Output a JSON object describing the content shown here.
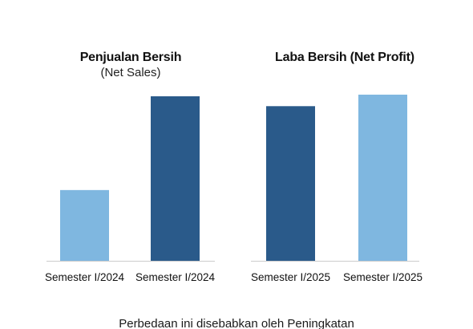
{
  "colors": {
    "dark_blue": "#2a5a8a",
    "light_blue": "#7fb7e0",
    "baseline": "#cccccc",
    "text": "#111111"
  },
  "chart_data": [
    {
      "type": "bar",
      "title": "Penjualan Bersih",
      "subtitle": "(Net Sales)",
      "categories": [
        "Semester I/2024",
        "Semester I/2024"
      ],
      "values": [
        43,
        100
      ],
      "bar_colors": [
        "light_blue",
        "dark_blue"
      ],
      "ylim": [
        0,
        100
      ],
      "grid": false,
      "legend": "none"
    },
    {
      "type": "bar",
      "title": "Laba Bersih (Net Profit)",
      "subtitle": "",
      "categories": [
        "Semester I/2025",
        "Semester I/2025"
      ],
      "values": [
        94,
        101
      ],
      "bar_colors": [
        "dark_blue",
        "light_blue"
      ],
      "ylim": [
        0,
        100
      ],
      "grid": false,
      "legend": "none"
    }
  ],
  "footer": {
    "text": "Perbedaan ini disebabkan oleh Peningkatan"
  }
}
